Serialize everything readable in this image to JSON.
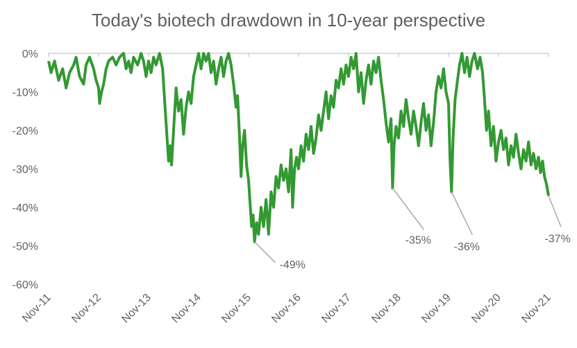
{
  "chart_data": {
    "type": "line",
    "title": "Today's biotech drawdown in 10-year perspective",
    "xlabel": "",
    "ylabel": "",
    "ylim": [
      -60,
      0
    ],
    "y_ticks": [
      0,
      -10,
      -20,
      -30,
      -40,
      -50,
      -60
    ],
    "y_tick_labels": [
      "0%",
      "-10%",
      "-20%",
      "-30%",
      "-40%",
      "-50%",
      "-60%"
    ],
    "x_range": [
      "Nov-11",
      "Nov-21"
    ],
    "x_tick_labels": [
      "Nov-11",
      "Nov-12",
      "Nov-13",
      "Nov-14",
      "Nov-15",
      "Nov-16",
      "Nov-17",
      "Nov-18",
      "Nov-19",
      "Nov-20",
      "Nov-21"
    ],
    "grid": false,
    "line_color": "#339933",
    "series": [
      {
        "name": "",
        "points": [
          {
            "x": 0.0,
            "y": -2
          },
          {
            "x": 0.05,
            "y": -5
          },
          {
            "x": 0.12,
            "y": -2
          },
          {
            "x": 0.2,
            "y": -7
          },
          {
            "x": 0.28,
            "y": -4
          },
          {
            "x": 0.35,
            "y": -9
          },
          {
            "x": 0.42,
            "y": -5
          },
          {
            "x": 0.5,
            "y": -3
          },
          {
            "x": 0.55,
            "y": -1
          },
          {
            "x": 0.62,
            "y": -6
          },
          {
            "x": 0.7,
            "y": -8
          },
          {
            "x": 0.75,
            "y": -3
          },
          {
            "x": 0.82,
            "y": -1
          },
          {
            "x": 0.9,
            "y": -4
          },
          {
            "x": 0.95,
            "y": -7
          },
          {
            "x": 1.0,
            "y": -9
          },
          {
            "x": 1.02,
            "y": -13
          },
          {
            "x": 1.06,
            "y": -10
          },
          {
            "x": 1.1,
            "y": -8
          },
          {
            "x": 1.15,
            "y": -4
          },
          {
            "x": 1.2,
            "y": -2
          },
          {
            "x": 1.28,
            "y": -1
          },
          {
            "x": 1.35,
            "y": -3
          },
          {
            "x": 1.42,
            "y": -1
          },
          {
            "x": 1.5,
            "y": 0
          },
          {
            "x": 1.55,
            "y": -4
          },
          {
            "x": 1.6,
            "y": -2
          },
          {
            "x": 1.65,
            "y": -5
          },
          {
            "x": 1.7,
            "y": -1
          },
          {
            "x": 1.78,
            "y": -3
          },
          {
            "x": 1.85,
            "y": 0
          },
          {
            "x": 1.9,
            "y": -2
          },
          {
            "x": 1.95,
            "y": -6
          },
          {
            "x": 2.0,
            "y": -2
          },
          {
            "x": 2.05,
            "y": -5
          },
          {
            "x": 2.1,
            "y": -1
          },
          {
            "x": 2.15,
            "y": -3
          },
          {
            "x": 2.22,
            "y": 0
          },
          {
            "x": 2.28,
            "y": -4
          },
          {
            "x": 2.32,
            "y": -12
          },
          {
            "x": 2.36,
            "y": -20
          },
          {
            "x": 2.4,
            "y": -28
          },
          {
            "x": 2.43,
            "y": -24
          },
          {
            "x": 2.46,
            "y": -29
          },
          {
            "x": 2.5,
            "y": -20
          },
          {
            "x": 2.55,
            "y": -9
          },
          {
            "x": 2.6,
            "y": -15
          },
          {
            "x": 2.65,
            "y": -12
          },
          {
            "x": 2.7,
            "y": -21
          },
          {
            "x": 2.75,
            "y": -14
          },
          {
            "x": 2.8,
            "y": -10
          },
          {
            "x": 2.85,
            "y": -13
          },
          {
            "x": 2.9,
            "y": -6
          },
          {
            "x": 2.95,
            "y": -3
          },
          {
            "x": 3.0,
            "y": 0
          },
          {
            "x": 3.05,
            "y": -4
          },
          {
            "x": 3.1,
            "y": 0
          },
          {
            "x": 3.15,
            "y": -2
          },
          {
            "x": 3.2,
            "y": 0
          },
          {
            "x": 3.25,
            "y": -5
          },
          {
            "x": 3.3,
            "y": -2
          },
          {
            "x": 3.35,
            "y": -8
          },
          {
            "x": 3.4,
            "y": -4
          },
          {
            "x": 3.45,
            "y": -1
          },
          {
            "x": 3.5,
            "y": -6
          },
          {
            "x": 3.55,
            "y": -2
          },
          {
            "x": 3.6,
            "y": 0
          },
          {
            "x": 3.65,
            "y": -3
          },
          {
            "x": 3.7,
            "y": -8
          },
          {
            "x": 3.75,
            "y": -14
          },
          {
            "x": 3.78,
            "y": -11
          },
          {
            "x": 3.82,
            "y": -22
          },
          {
            "x": 3.85,
            "y": -32
          },
          {
            "x": 3.88,
            "y": -24
          },
          {
            "x": 3.92,
            "y": -20
          },
          {
            "x": 3.96,
            "y": -29
          },
          {
            "x": 4.0,
            "y": -33
          },
          {
            "x": 4.03,
            "y": -39
          },
          {
            "x": 4.06,
            "y": -45
          },
          {
            "x": 4.09,
            "y": -42
          },
          {
            "x": 4.12,
            "y": -49
          },
          {
            "x": 4.16,
            "y": -44
          },
          {
            "x": 4.2,
            "y": -47
          },
          {
            "x": 4.25,
            "y": -40
          },
          {
            "x": 4.3,
            "y": -45
          },
          {
            "x": 4.35,
            "y": -38
          },
          {
            "x": 4.4,
            "y": -47
          },
          {
            "x": 4.45,
            "y": -36
          },
          {
            "x": 4.5,
            "y": -40
          },
          {
            "x": 4.55,
            "y": -32
          },
          {
            "x": 4.6,
            "y": -35
          },
          {
            "x": 4.65,
            "y": -29
          },
          {
            "x": 4.7,
            "y": -33
          },
          {
            "x": 4.75,
            "y": -30
          },
          {
            "x": 4.8,
            "y": -36
          },
          {
            "x": 4.85,
            "y": -25
          },
          {
            "x": 4.88,
            "y": -40
          },
          {
            "x": 4.92,
            "y": -30
          },
          {
            "x": 4.96,
            "y": -27
          },
          {
            "x": 5.0,
            "y": -30
          },
          {
            "x": 5.05,
            "y": -24
          },
          {
            "x": 5.1,
            "y": -28
          },
          {
            "x": 5.15,
            "y": -21
          },
          {
            "x": 5.2,
            "y": -25
          },
          {
            "x": 5.25,
            "y": -19
          },
          {
            "x": 5.3,
            "y": -26
          },
          {
            "x": 5.35,
            "y": -22
          },
          {
            "x": 5.4,
            "y": -16
          },
          {
            "x": 5.45,
            "y": -20
          },
          {
            "x": 5.5,
            "y": -15
          },
          {
            "x": 5.55,
            "y": -10
          },
          {
            "x": 5.6,
            "y": -17
          },
          {
            "x": 5.65,
            "y": -11
          },
          {
            "x": 5.7,
            "y": -14
          },
          {
            "x": 5.75,
            "y": -7
          },
          {
            "x": 5.8,
            "y": -9
          },
          {
            "x": 5.85,
            "y": -4
          },
          {
            "x": 5.9,
            "y": -8
          },
          {
            "x": 5.95,
            "y": -3
          },
          {
            "x": 6.0,
            "y": -6
          },
          {
            "x": 6.05,
            "y": -1
          },
          {
            "x": 6.1,
            "y": -4
          },
          {
            "x": 6.15,
            "y": 0
          },
          {
            "x": 6.2,
            "y": -10
          },
          {
            "x": 6.25,
            "y": -5
          },
          {
            "x": 6.3,
            "y": -13
          },
          {
            "x": 6.35,
            "y": -7
          },
          {
            "x": 6.4,
            "y": -3
          },
          {
            "x": 6.45,
            "y": -8
          },
          {
            "x": 6.5,
            "y": -2
          },
          {
            "x": 6.55,
            "y": -5
          },
          {
            "x": 6.6,
            "y": -1
          },
          {
            "x": 6.65,
            "y": -7
          },
          {
            "x": 6.7,
            "y": -12
          },
          {
            "x": 6.75,
            "y": -18
          },
          {
            "x": 6.8,
            "y": -23
          },
          {
            "x": 6.85,
            "y": -17
          },
          {
            "x": 6.88,
            "y": -35
          },
          {
            "x": 6.91,
            "y": -24
          },
          {
            "x": 6.95,
            "y": -19
          },
          {
            "x": 7.0,
            "y": -22
          },
          {
            "x": 7.05,
            "y": -15
          },
          {
            "x": 7.1,
            "y": -19
          },
          {
            "x": 7.15,
            "y": -12
          },
          {
            "x": 7.2,
            "y": -17
          },
          {
            "x": 7.25,
            "y": -21
          },
          {
            "x": 7.3,
            "y": -15
          },
          {
            "x": 7.35,
            "y": -19
          },
          {
            "x": 7.4,
            "y": -24
          },
          {
            "x": 7.45,
            "y": -18
          },
          {
            "x": 7.5,
            "y": -13
          },
          {
            "x": 7.55,
            "y": -20
          },
          {
            "x": 7.6,
            "y": -16
          },
          {
            "x": 7.65,
            "y": -24
          },
          {
            "x": 7.7,
            "y": -18
          },
          {
            "x": 7.75,
            "y": -10
          },
          {
            "x": 7.8,
            "y": -6
          },
          {
            "x": 7.85,
            "y": -9
          },
          {
            "x": 7.9,
            "y": -4
          },
          {
            "x": 7.95,
            "y": -10
          },
          {
            "x": 8.0,
            "y": -13
          },
          {
            "x": 8.03,
            "y": -28
          },
          {
            "x": 8.06,
            "y": -36
          },
          {
            "x": 8.09,
            "y": -22
          },
          {
            "x": 8.13,
            "y": -12
          },
          {
            "x": 8.17,
            "y": -8
          },
          {
            "x": 8.22,
            "y": -3
          },
          {
            "x": 8.27,
            "y": 0
          },
          {
            "x": 8.32,
            "y": -5
          },
          {
            "x": 8.37,
            "y": -1
          },
          {
            "x": 8.42,
            "y": -6
          },
          {
            "x": 8.47,
            "y": -2
          },
          {
            "x": 8.52,
            "y": 0
          },
          {
            "x": 8.58,
            "y": -4
          },
          {
            "x": 8.63,
            "y": -1
          },
          {
            "x": 8.68,
            "y": -5
          },
          {
            "x": 8.72,
            "y": -12
          },
          {
            "x": 8.76,
            "y": -20
          },
          {
            "x": 8.8,
            "y": -15
          },
          {
            "x": 8.85,
            "y": -24
          },
          {
            "x": 8.9,
            "y": -19
          },
          {
            "x": 8.95,
            "y": -28
          },
          {
            "x": 9.0,
            "y": -23
          },
          {
            "x": 9.05,
            "y": -20
          },
          {
            "x": 9.1,
            "y": -25
          },
          {
            "x": 9.15,
            "y": -22
          },
          {
            "x": 9.2,
            "y": -29
          },
          {
            "x": 9.25,
            "y": -24
          },
          {
            "x": 9.3,
            "y": -27
          },
          {
            "x": 9.35,
            "y": -21
          },
          {
            "x": 9.4,
            "y": -26
          },
          {
            "x": 9.45,
            "y": -30
          },
          {
            "x": 9.5,
            "y": -25
          },
          {
            "x": 9.55,
            "y": -28
          },
          {
            "x": 9.6,
            "y": -23
          },
          {
            "x": 9.65,
            "y": -29
          },
          {
            "x": 9.7,
            "y": -26
          },
          {
            "x": 9.75,
            "y": -30
          },
          {
            "x": 9.8,
            "y": -27
          },
          {
            "x": 9.84,
            "y": -31
          },
          {
            "x": 9.88,
            "y": -28
          },
          {
            "x": 9.92,
            "y": -32
          },
          {
            "x": 9.96,
            "y": -34
          },
          {
            "x": 10.0,
            "y": -37
          }
        ]
      }
    ],
    "annotations": [
      {
        "label": "-49%",
        "x": 4.12,
        "y": -49
      },
      {
        "label": "-35%",
        "x": 6.88,
        "y": -35
      },
      {
        "label": "-36%",
        "x": 8.06,
        "y": -36
      },
      {
        "label": "-37%",
        "x": 10.0,
        "y": -37
      }
    ]
  }
}
